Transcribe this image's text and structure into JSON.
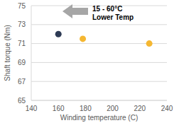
{
  "chart_data": {
    "type": "scatter",
    "x_label": "Winding temperature (C)",
    "y_label": "Shaft torque (Nm)",
    "x": [
      160,
      178,
      227
    ],
    "values": [
      72,
      71.5,
      71
    ],
    "colors": [
      "#2e3b55",
      "#f5b731",
      "#f5b731"
    ],
    "marker": "circle",
    "xlim": [
      140,
      240
    ],
    "xticks": [
      140,
      160,
      180,
      200,
      220,
      240
    ],
    "ylim": [
      65,
      75
    ],
    "yticks": [
      65,
      67,
      69,
      71,
      73,
      75
    ],
    "grid": true,
    "annotations": [
      "15 - 60°C",
      "Lower Temp"
    ]
  }
}
